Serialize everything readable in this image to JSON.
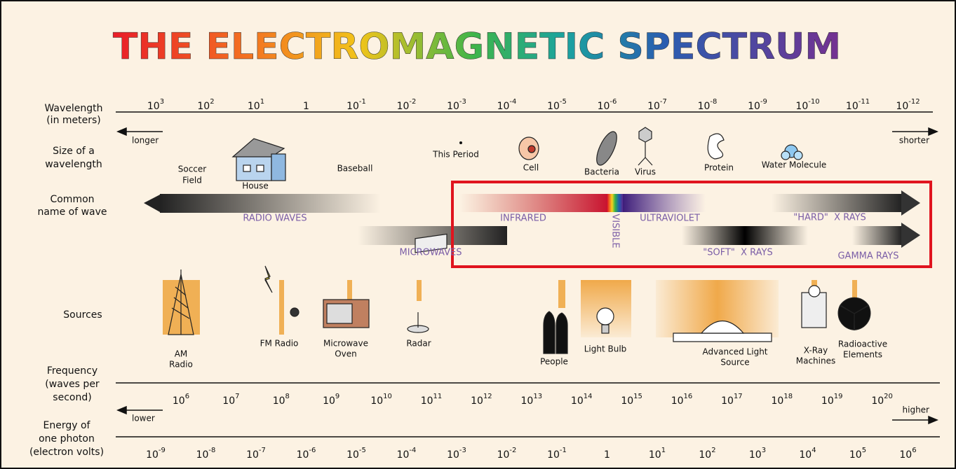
{
  "title": "THE ELECTROMAGNETIC SPECTRUM",
  "rows": {
    "wavelength": {
      "label": [
        "Wavelength",
        "(in meters)"
      ],
      "ticks": [
        {
          "base": "10",
          "exponent": "3"
        },
        {
          "base": "10",
          "exponent": "2"
        },
        {
          "base": "10",
          "exponent": "1"
        },
        {
          "base": "1"
        },
        {
          "base": "10",
          "exponent": "-1"
        },
        {
          "base": "10",
          "exponent": "-2"
        },
        {
          "base": "10",
          "exponent": "-3"
        },
        {
          "base": "10",
          "exponent": "-4"
        },
        {
          "base": "10",
          "exponent": "-5"
        },
        {
          "base": "10",
          "exponent": "-6"
        },
        {
          "base": "10",
          "exponent": "-7"
        },
        {
          "base": "10",
          "exponent": "-8"
        },
        {
          "base": "10",
          "exponent": "-9"
        },
        {
          "base": "10",
          "exponent": "-10"
        },
        {
          "base": "10",
          "exponent": "-11"
        },
        {
          "base": "10",
          "exponent": "-12"
        }
      ],
      "left": "longer",
      "right": "shorter"
    },
    "size": {
      "label": [
        "Size of a",
        "wavelength"
      ],
      "items": [
        [
          "Soccer",
          "Field"
        ],
        [
          "House"
        ],
        [
          "Baseball"
        ],
        [
          "This Period"
        ],
        [
          "Cell"
        ],
        [
          "Bacteria"
        ],
        [
          "Virus"
        ],
        [
          "Protein"
        ],
        [
          "Water Molecule"
        ]
      ]
    },
    "wave": {
      "label": [
        "Common",
        "name of wave"
      ],
      "names": [
        "RADIO WAVES",
        "MICROWAVES",
        "INFRARED",
        "VISIBLE",
        "ULTRAVIOLET",
        "\"HARD\"  X RAYS",
        "\"SOFT\"  X RAYS",
        "GAMMA RAYS"
      ]
    },
    "sources": {
      "label": [
        "Sources"
      ],
      "items": [
        [
          "AM",
          "Radio"
        ],
        [
          "FM Radio"
        ],
        [
          "Microwave",
          "Oven"
        ],
        [
          "Radar"
        ],
        [
          "People"
        ],
        [
          "Light Bulb"
        ],
        [
          "Advanced Light",
          "Source"
        ],
        [
          "X-Ray",
          "Machines"
        ],
        [
          "Radioactive",
          "Elements"
        ]
      ]
    },
    "frequency": {
      "label": [
        "Frequency",
        "(waves per",
        "second)"
      ],
      "ticks": [
        {
          "base": "10",
          "exponent": "6"
        },
        {
          "base": "10",
          "exponent": "7"
        },
        {
          "base": "10",
          "exponent": "8"
        },
        {
          "base": "10",
          "exponent": "9"
        },
        {
          "base": "10",
          "exponent": "10"
        },
        {
          "base": "10",
          "exponent": "11"
        },
        {
          "base": "10",
          "exponent": "12"
        },
        {
          "base": "10",
          "exponent": "13"
        },
        {
          "base": "10",
          "exponent": "14"
        },
        {
          "base": "10",
          "exponent": "15"
        },
        {
          "base": "10",
          "exponent": "16"
        },
        {
          "base": "10",
          "exponent": "17"
        },
        {
          "base": "10",
          "exponent": "18"
        },
        {
          "base": "10",
          "exponent": "19"
        },
        {
          "base": "10",
          "exponent": "20"
        }
      ]
    },
    "energy": {
      "label": [
        "Energy of",
        "one photon",
        "(electron volts)"
      ],
      "ticks": [
        {
          "base": "10",
          "exponent": "-9"
        },
        {
          "base": "10",
          "exponent": "-8"
        },
        {
          "base": "10",
          "exponent": "-7"
        },
        {
          "base": "10",
          "exponent": "-6"
        },
        {
          "base": "10",
          "exponent": "-5"
        },
        {
          "base": "10",
          "exponent": "-4"
        },
        {
          "base": "10",
          "exponent": "-3"
        },
        {
          "base": "10",
          "exponent": "-2"
        },
        {
          "base": "10",
          "exponent": "-1"
        },
        {
          "base": "1"
        },
        {
          "base": "10",
          "exponent": "1"
        },
        {
          "base": "10",
          "exponent": "2"
        },
        {
          "base": "10",
          "exponent": "3"
        },
        {
          "base": "10",
          "exponent": "4"
        },
        {
          "base": "10",
          "exponent": "5"
        },
        {
          "base": "10",
          "exponent": "6"
        }
      ],
      "left": "lower",
      "right": "higher"
    }
  }
}
